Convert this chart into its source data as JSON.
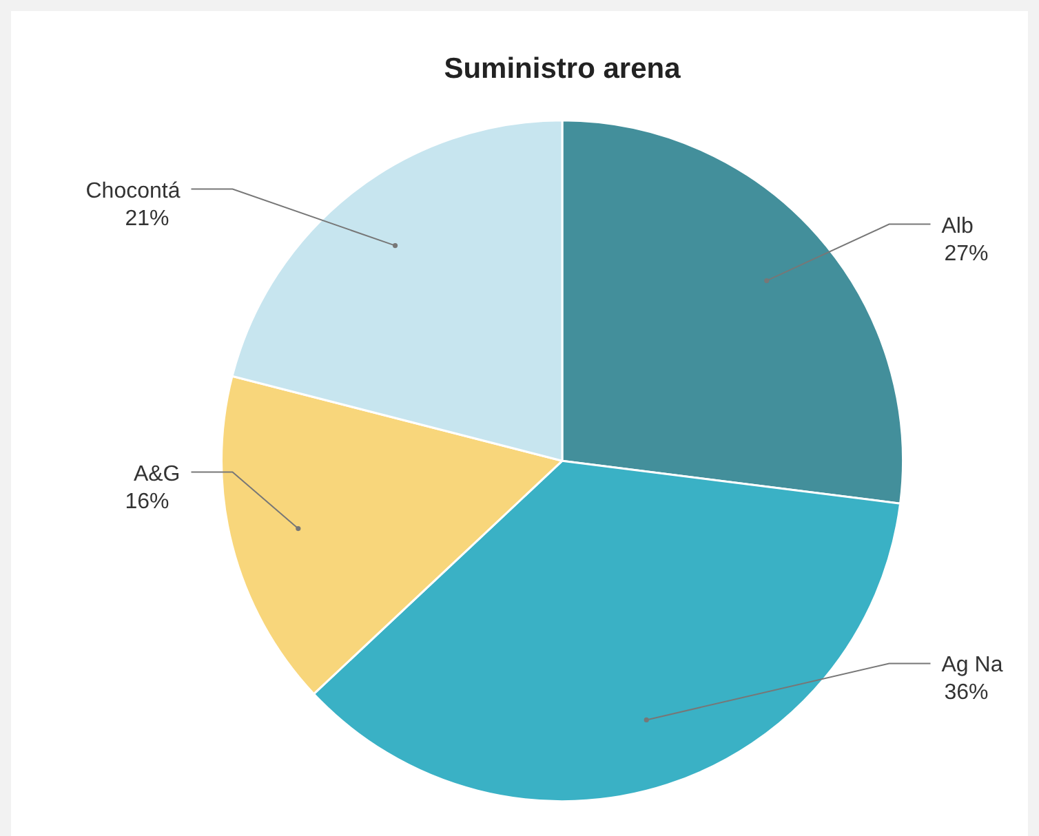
{
  "chart_data": {
    "type": "pie",
    "title": "Suministro arena",
    "categories": [
      "Alb",
      "Ag Na",
      "A&G",
      "Chocontá"
    ],
    "values": [
      27,
      36,
      16,
      21
    ],
    "value_labels": [
      "27%",
      "36%",
      "16%",
      "21%"
    ],
    "colors": [
      "#438f9b",
      "#3ab1c5",
      "#f8d67b",
      "#c7e5ef"
    ],
    "legend": false
  }
}
